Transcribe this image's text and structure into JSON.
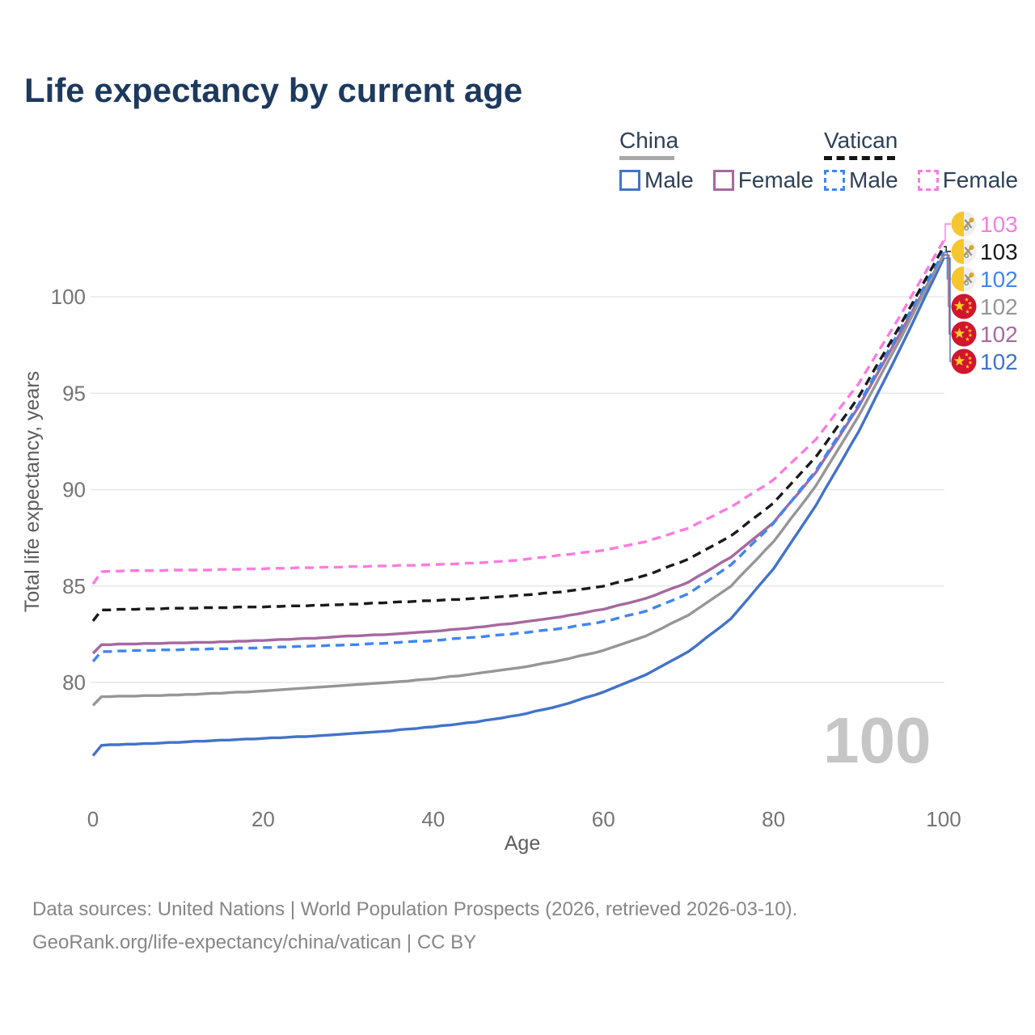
{
  "title": "Life expectancy by current age",
  "legend": {
    "groups": [
      {
        "label": "China",
        "line_style": "solid",
        "line_color": "#a8a8a8",
        "items": [
          {
            "label": "Male",
            "color": "#4273c8",
            "dashed": false
          },
          {
            "label": "Female",
            "color": "#a5699f",
            "dashed": false
          }
        ]
      },
      {
        "label": "Vatican",
        "line_style": "dashed",
        "line_color": "#141414",
        "items": [
          {
            "label": "Male",
            "color": "#3f86f2",
            "dashed": true
          },
          {
            "label": "Female",
            "color": "#fb7ce0",
            "dashed": true
          }
        ]
      }
    ]
  },
  "chart_data": {
    "type": "line",
    "title": "Life expectancy by current age",
    "xlabel": "Age",
    "ylabel": "Total life expectancy, years",
    "xticks": [
      0,
      20,
      40,
      60,
      80,
      100
    ],
    "yticks": [
      80,
      85,
      90,
      95,
      100
    ],
    "xlim": [
      0,
      100
    ],
    "ylim": [
      75,
      103.5
    ],
    "grid": "horizontal",
    "legend_position": "top-right",
    "watermark": "100",
    "x": [
      0,
      1,
      5,
      10,
      15,
      20,
      25,
      30,
      35,
      40,
      45,
      50,
      55,
      60,
      65,
      70,
      75,
      80,
      85,
      90,
      95,
      100
    ],
    "series": [
      {
        "name": "Vatican Female",
        "country": "Vatican",
        "sex": "Female",
        "color": "#fb7ce0",
        "dashed": true,
        "flag": "vatican",
        "end_label": "103",
        "values": [
          85.1,
          85.75,
          85.8,
          85.82,
          85.85,
          85.9,
          85.95,
          86.0,
          86.05,
          86.1,
          86.2,
          86.35,
          86.6,
          86.85,
          87.3,
          88.0,
          89.1,
          90.5,
          92.6,
          95.5,
          99.1,
          102.9
        ]
      },
      {
        "name": "Vatican Both sexes",
        "country": "Vatican",
        "sex": "Both",
        "color": "#1a1a1a",
        "dashed": true,
        "flag": "vatican",
        "end_label": "103",
        "values": [
          83.2,
          83.75,
          83.8,
          83.85,
          83.88,
          83.92,
          83.98,
          84.05,
          84.15,
          84.25,
          84.35,
          84.5,
          84.7,
          85.0,
          85.55,
          86.4,
          87.6,
          89.3,
          91.7,
          94.8,
          98.6,
          102.6
        ]
      },
      {
        "name": "Vatican Male",
        "country": "Vatican",
        "sex": "Male",
        "color": "#3f86f2",
        "dashed": true,
        "flag": "vatican",
        "end_label": "102",
        "values": [
          81.1,
          81.6,
          81.65,
          81.7,
          81.75,
          81.8,
          81.88,
          81.95,
          82.05,
          82.18,
          82.35,
          82.55,
          82.8,
          83.15,
          83.7,
          84.6,
          86.1,
          88.25,
          91.0,
          94.4,
          98.4,
          102.3
        ]
      },
      {
        "name": "China Both sexes",
        "country": "China",
        "sex": "Both",
        "color": "#969696",
        "dashed": false,
        "flag": "china",
        "end_label": "102",
        "values": [
          78.8,
          79.25,
          79.3,
          79.35,
          79.45,
          79.55,
          79.7,
          79.85,
          80.0,
          80.2,
          80.45,
          80.75,
          81.15,
          81.65,
          82.4,
          83.5,
          85.0,
          87.3,
          90.2,
          93.8,
          97.9,
          102.2
        ]
      },
      {
        "name": "China Female",
        "country": "China",
        "sex": "Female",
        "color": "#a5699f",
        "dashed": false,
        "flag": "china",
        "end_label": "102",
        "values": [
          81.5,
          81.95,
          82.0,
          82.05,
          82.1,
          82.18,
          82.28,
          82.4,
          82.5,
          82.65,
          82.85,
          83.1,
          83.4,
          83.8,
          84.35,
          85.2,
          86.5,
          88.3,
          90.9,
          94.3,
          98.2,
          102.15
        ]
      },
      {
        "name": "China Male",
        "country": "China",
        "sex": "Male",
        "color": "#4273c8",
        "dashed": false,
        "flag": "china",
        "end_label": "102",
        "values": [
          76.2,
          76.75,
          76.8,
          76.9,
          77.0,
          77.1,
          77.2,
          77.35,
          77.5,
          77.7,
          77.95,
          78.3,
          78.8,
          79.5,
          80.4,
          81.6,
          83.3,
          85.9,
          89.2,
          93.0,
          97.4,
          102.0
        ]
      }
    ],
    "flag_colors": {
      "vatican_yellow": "#f6c62f",
      "vatican_white": "#f1efe9",
      "china_red": "#d2152e",
      "china_star_yellow": "#fcd021"
    }
  },
  "footer": {
    "line1": "Data sources: United Nations | World Population Prospects (2026, retrieved 2026-03-10).",
    "line2": "GeoRank.org/life-expectancy/china/vatican | CC BY"
  }
}
